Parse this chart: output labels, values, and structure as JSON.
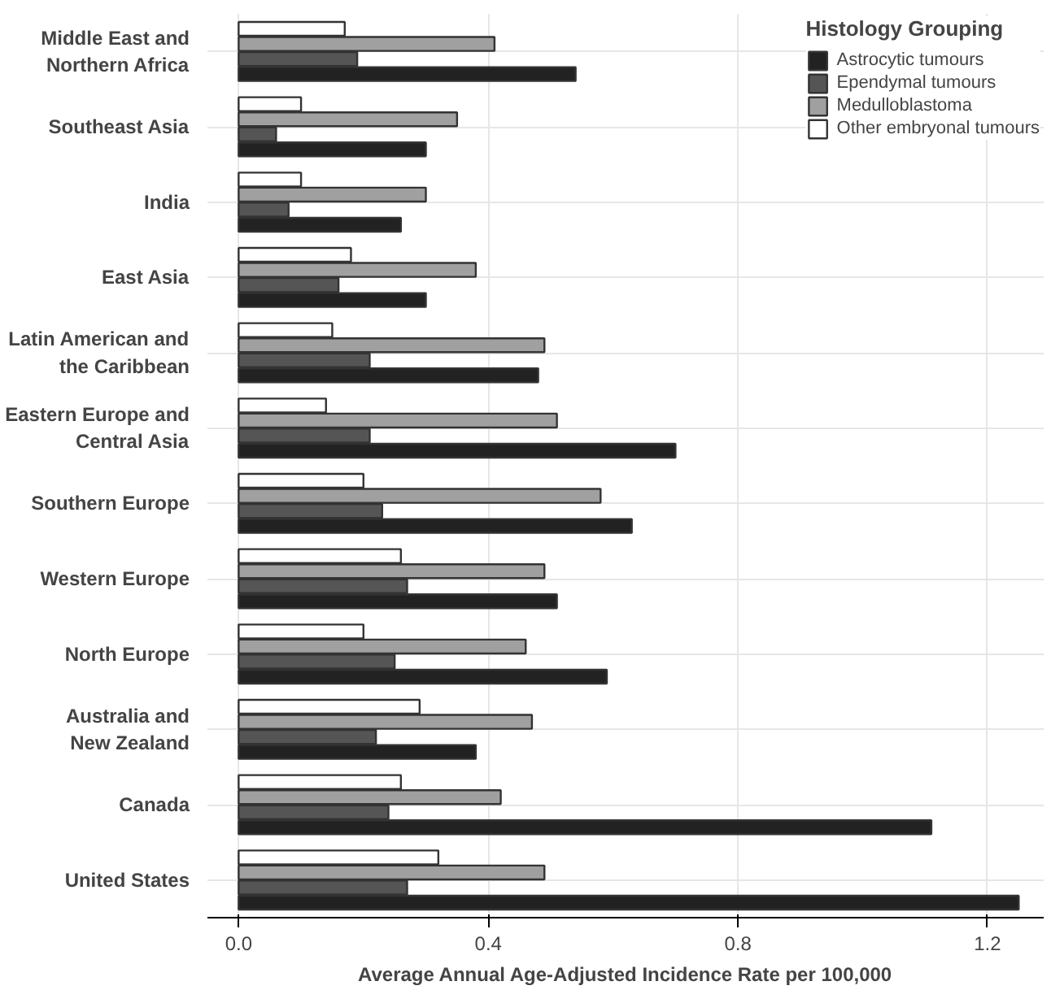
{
  "chart_data": {
    "type": "bar",
    "orientation": "horizontal",
    "categories": [
      "Middle East and\nNorthern Africa",
      "Southeast Asia",
      "India",
      "East Asia",
      "Latin American and\nthe Caribbean",
      "Eastern Europe and\nCentral Asia",
      "Southern Europe",
      "Western Europe",
      "North Europe",
      "Australia and\nNew Zealand",
      "Canada",
      "United States"
    ],
    "series": [
      {
        "name": "Astrocytic tumours",
        "color": "#222222",
        "values": [
          0.54,
          0.3,
          0.26,
          0.3,
          0.48,
          0.7,
          0.63,
          0.51,
          0.59,
          0.38,
          1.11,
          1.25
        ]
      },
      {
        "name": "Ependymal tumours",
        "color": "#555555",
        "values": [
          0.19,
          0.06,
          0.08,
          0.16,
          0.21,
          0.21,
          0.23,
          0.27,
          0.25,
          0.22,
          0.24,
          0.27
        ]
      },
      {
        "name": "Medulloblastoma",
        "color": "#a0a0a0",
        "values": [
          0.41,
          0.35,
          0.3,
          0.38,
          0.49,
          0.51,
          0.58,
          0.49,
          0.46,
          0.47,
          0.42,
          0.49
        ]
      },
      {
        "name": "Other embryonal tumours",
        "color": "#ffffff",
        "values": [
          0.17,
          0.1,
          0.1,
          0.18,
          0.15,
          0.14,
          0.2,
          0.26,
          0.2,
          0.29,
          0.26,
          0.32
        ]
      }
    ],
    "xlabel": "Average Annual Age-Adjusted Incidence Rate per 100,000",
    "legend_title": "Histology Grouping",
    "xlim": [
      -0.05,
      1.29
    ],
    "xticks": [
      {
        "value": 0,
        "label": "0.0"
      },
      0.4,
      0.8,
      1.2
    ],
    "grid": true,
    "legend": "top right"
  }
}
